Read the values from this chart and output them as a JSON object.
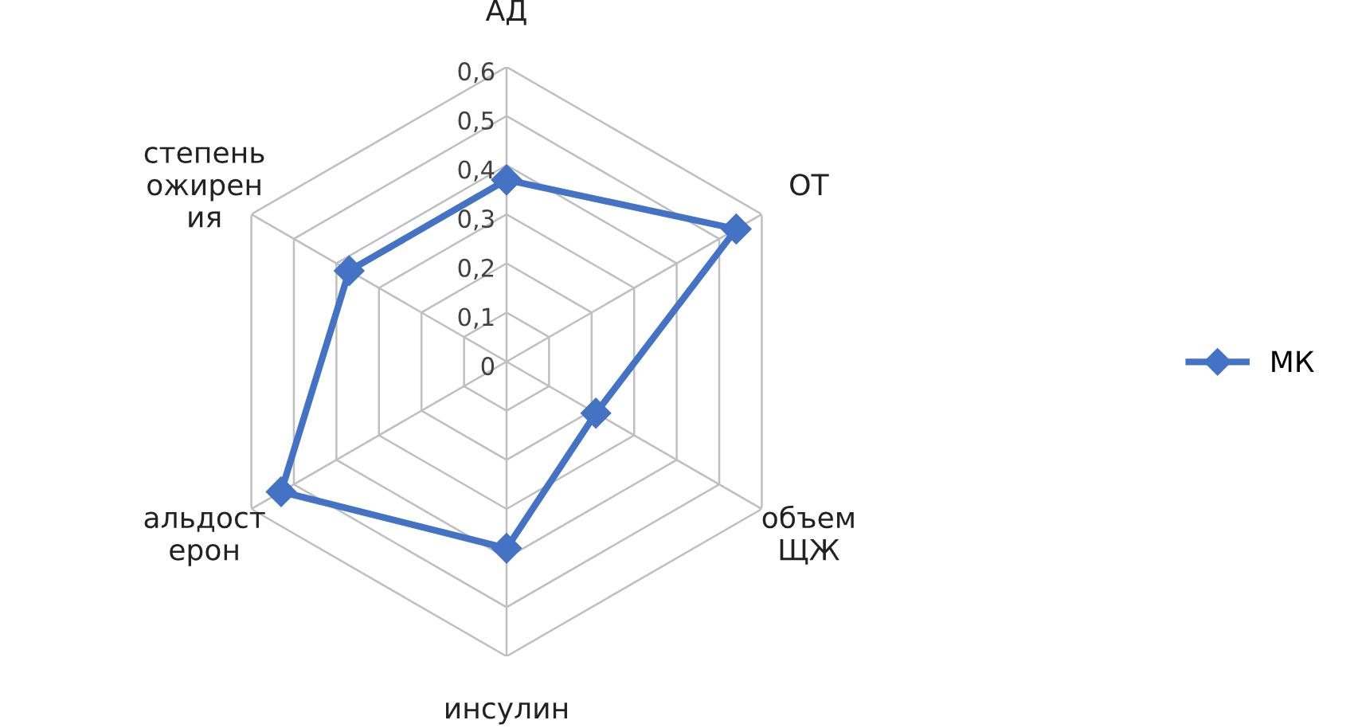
{
  "chart_data": {
    "type": "radar",
    "categories": [
      "АД",
      "ОТ",
      "объем\nЩЖ",
      "инсулин",
      "альдост\nерон",
      "степень\nожирен\nия"
    ],
    "series": [
      {
        "name": "МК",
        "color": "#4472c4",
        "values": [
          0.37,
          0.54,
          0.21,
          0.38,
          0.53,
          0.37
        ]
      }
    ],
    "ylim": [
      0,
      0.6
    ],
    "yticks": [
      {
        "value": 0,
        "label": "0"
      },
      {
        "value": 0.1,
        "label": "0,1"
      },
      {
        "value": 0.2,
        "label": "0,2"
      },
      {
        "value": 0.3,
        "label": "0,3"
      },
      {
        "value": 0.4,
        "label": "0,4"
      },
      {
        "value": 0.5,
        "label": "0,5"
      },
      {
        "value": 0.6,
        "label": "0,6"
      }
    ],
    "grid": true,
    "legend": "right",
    "marker": "diamond",
    "line_style": "solid"
  }
}
